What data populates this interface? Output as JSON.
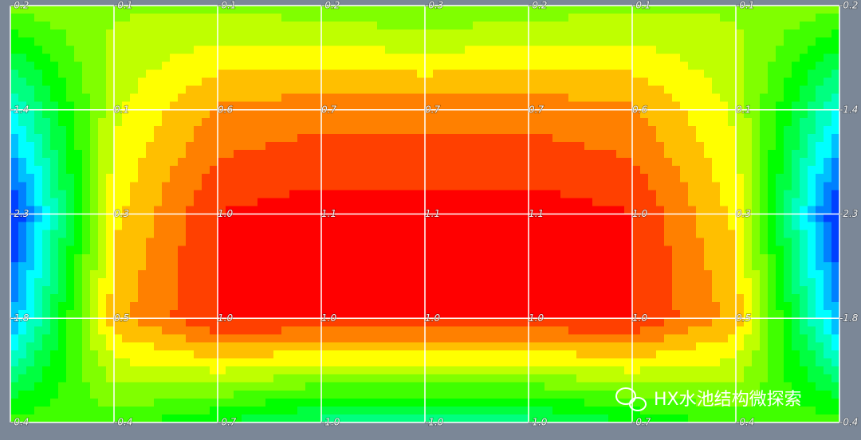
{
  "chart_data": {
    "type": "contour",
    "values": [
      [
        -0.2,
        -0.1,
        -0.1,
        -0.2,
        -0.3,
        -0.2,
        -0.1,
        -0.1,
        -0.2
      ],
      [
        -1.4,
        0.1,
        0.6,
        0.7,
        0.7,
        0.7,
        0.6,
        0.1,
        -1.4
      ],
      [
        -2.3,
        0.3,
        1.0,
        1.1,
        1.1,
        1.1,
        1.0,
        0.3,
        -2.3
      ],
      [
        -1.8,
        0.5,
        1.0,
        1.0,
        1.0,
        1.0,
        1.0,
        0.5,
        -1.8
      ],
      [
        -0.4,
        -0.4,
        -0.7,
        -1.0,
        -1.0,
        -1.0,
        -0.7,
        -0.4,
        -0.4
      ]
    ],
    "value_labels": [
      [
        "-0.2",
        "-0.1",
        "-0.1",
        "-0.2",
        "-0.3",
        "-0.2",
        "-0.1",
        "-0.1",
        "-0.2"
      ],
      [
        "-1.4",
        "0.1",
        "0.6",
        "0.7",
        "0.7",
        "0.7",
        "0.6",
        "0.1",
        "-1.4"
      ],
      [
        "-2.3",
        "0.3",
        "1.0",
        "1.1",
        "1.1",
        "1.1",
        "1.0",
        "0.3",
        "-2.3"
      ],
      [
        "-1.8",
        "0.5",
        "1.0",
        "1.0",
        "1.0",
        "1.0",
        "1.0",
        "0.5",
        "-1.8"
      ],
      [
        "-0.4",
        "-0.4",
        "-0.7",
        "-1.0",
        "-1.0",
        "-1.0",
        "-0.7",
        "-0.4",
        "-0.4"
      ]
    ],
    "watermark": "HX水池结构微探索"
  }
}
